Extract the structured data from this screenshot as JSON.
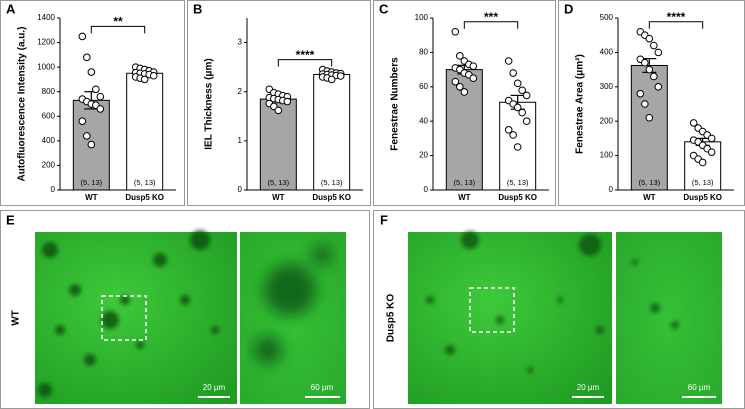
{
  "chart_data": [
    {
      "type": "bar",
      "panel_label": "A",
      "ylabel": "Autofluorescence  Intensity (a.u.)",
      "categories": [
        "WT",
        "Dusp5 KO"
      ],
      "colors": [
        "#a6a6a6",
        "#ffffff"
      ],
      "values": [
        730,
        950
      ],
      "errors": [
        70,
        15
      ],
      "points": [
        [
          1250,
          1080,
          960,
          820,
          760,
          740,
          720,
          700,
          690,
          660,
          560,
          440,
          370
        ],
        [
          1000,
          990,
          980,
          970,
          960,
          955,
          950,
          945,
          940,
          930,
          920,
          910,
          900
        ]
      ],
      "n_labels": [
        "(5, 13)",
        "(5, 13)"
      ],
      "significance": "**",
      "ylim": [
        0,
        1400
      ],
      "yticks": [
        0,
        200,
        400,
        600,
        800,
        1000,
        1200,
        1400
      ]
    },
    {
      "type": "bar",
      "panel_label": "B",
      "ylabel": "IEL Thickness (μm)",
      "categories": [
        "WT",
        "Dusp5 KO"
      ],
      "colors": [
        "#a6a6a6",
        "#ffffff"
      ],
      "values": [
        1.85,
        2.35
      ],
      "errors": [
        0.04,
        0.03
      ],
      "points": [
        [
          2.05,
          1.98,
          1.95,
          1.92,
          1.9,
          1.88,
          1.86,
          1.84,
          1.82,
          1.8,
          1.76,
          1.7,
          1.62
        ],
        [
          2.45,
          2.42,
          2.4,
          2.38,
          2.37,
          2.36,
          2.35,
          2.34,
          2.33,
          2.32,
          2.3,
          2.28,
          2.25
        ]
      ],
      "n_labels": [
        "(5, 13)",
        "(5, 13)"
      ],
      "significance": "****",
      "ylim": [
        0,
        3.5
      ],
      "yticks": [
        0,
        1,
        2,
        3
      ]
    },
    {
      "type": "bar",
      "panel_label": "C",
      "ylabel": "Fenestrae Numbers",
      "categories": [
        "WT",
        "Dusp5 KO"
      ],
      "colors": [
        "#a6a6a6",
        "#ffffff"
      ],
      "values": [
        70,
        51
      ],
      "errors": [
        2.5,
        4
      ],
      "points": [
        [
          92,
          78,
          75,
          73,
          72,
          71,
          70,
          68,
          67,
          65,
          63,
          60,
          57
        ],
        [
          75,
          68,
          62,
          58,
          55,
          52,
          50,
          48,
          45,
          40,
          35,
          32,
          25
        ]
      ],
      "n_labels": [
        "(5, 13)",
        "(5, 13)"
      ],
      "significance": "***",
      "ylim": [
        0,
        100
      ],
      "yticks": [
        0,
        20,
        40,
        60,
        80,
        100
      ]
    },
    {
      "type": "bar",
      "panel_label": "D",
      "ylabel": "Fenestrae Area (μm²)",
      "categories": [
        "WT",
        "Dusp5 KO"
      ],
      "colors": [
        "#a6a6a6",
        "#ffffff"
      ],
      "values": [
        362,
        140
      ],
      "errors": [
        20,
        10
      ],
      "points": [
        [
          460,
          450,
          440,
          420,
          400,
          380,
          370,
          350,
          330,
          300,
          280,
          250,
          210
        ],
        [
          195,
          180,
          170,
          160,
          150,
          145,
          140,
          130,
          120,
          110,
          100,
          90,
          80
        ]
      ],
      "n_labels": [
        "(5, 13)",
        "(5, 13)"
      ],
      "significance": "****",
      "ylim": [
        0,
        500
      ],
      "yticks": [
        0,
        100,
        200,
        300,
        400,
        500
      ]
    }
  ],
  "images": [
    {
      "label": "E",
      "group": "WT",
      "scale_bars": [
        "20 µm",
        "60 µm"
      ]
    },
    {
      "label": "F",
      "group": "Dusp5 KO",
      "scale_bars": [
        "20 µm",
        "60 µm"
      ]
    }
  ]
}
